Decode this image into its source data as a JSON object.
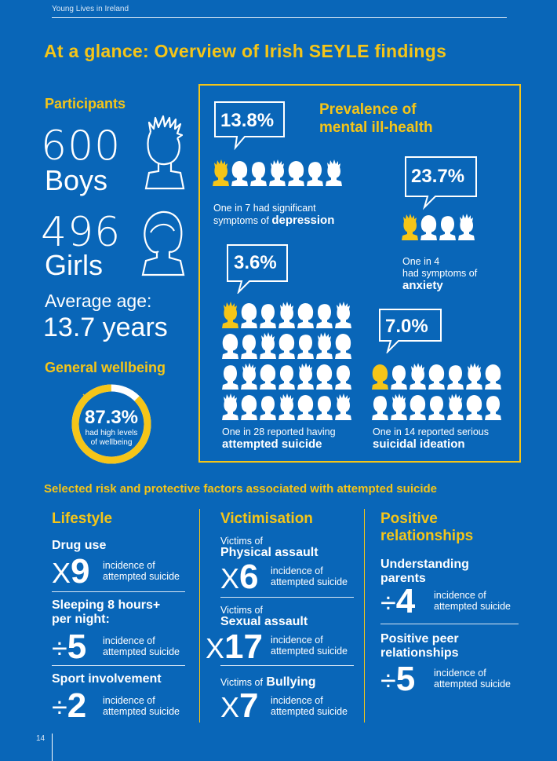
{
  "header": {
    "section": "Young Lives in Ireland"
  },
  "title": "At a glance: Overview of Irish SEYLE findings",
  "participants": {
    "heading": "Participants",
    "boys_count": "600",
    "boys_label": "Boys",
    "girls_count": "496",
    "girls_label": "Girls",
    "avg_label": "Average age:",
    "avg_value": "13.7 years"
  },
  "wellbeing": {
    "heading": "General wellbeing",
    "value": "87.3%",
    "caption_1": "had high levels",
    "caption_2": "of wellbeing",
    "fraction": 0.873
  },
  "prevalence": {
    "heading_1": "Prevalence of",
    "heading_2": "mental ill-health",
    "depression": {
      "pct": "13.8%",
      "cap_1": "One in 7 had significant",
      "cap_2": "symptoms of",
      "bold": "depression"
    },
    "anxiety": {
      "pct": "23.7%",
      "cap_1": "One in 4",
      "cap_2": "had symptoms of",
      "bold": "anxiety"
    },
    "attempted": {
      "pct": "3.6%",
      "cap_1": "One in 28 reported having",
      "bold": "attempted suicide"
    },
    "ideation": {
      "pct": "7.0%",
      "cap_1": "One in 14 reported serious",
      "bold": "suicidal ideation"
    }
  },
  "factors": {
    "heading": "Selected risk and protective factors associated with attempted suicide",
    "inc_1": "incidence of",
    "inc_2": "attempted suicide",
    "lifestyle": {
      "title": "Lifestyle",
      "drug": {
        "title": "Drug use",
        "op": "X",
        "num": "9"
      },
      "sleep": {
        "title_1": "Sleeping 8 hours+",
        "title_2": "per night:",
        "op": "÷",
        "num": "5"
      },
      "sport": {
        "title": "Sport involvement",
        "op": "÷",
        "num": "2"
      }
    },
    "victimisation": {
      "title": "Victimisation",
      "physical": {
        "pre": "Victims of",
        "title": "Physical assault",
        "op": "X",
        "num": "6"
      },
      "sexual": {
        "pre": "Victims of",
        "title": "Sexual assault",
        "op": "X",
        "num": "17"
      },
      "bullying": {
        "pre": "Victims of",
        "title": "Bullying",
        "op": "X",
        "num": "7"
      }
    },
    "positive": {
      "title_1": "Positive",
      "title_2": "relationships",
      "parents": {
        "title_1": "Understanding",
        "title_2": "parents",
        "op": "÷",
        "num": "4"
      },
      "peer": {
        "title_1": "Positive peer",
        "title_2": "relationships",
        "op": "÷",
        "num": "5"
      }
    }
  },
  "page_number": "14",
  "colors": {
    "background": "#0966b8",
    "accent": "#f5c518",
    "text": "#ffffff"
  }
}
